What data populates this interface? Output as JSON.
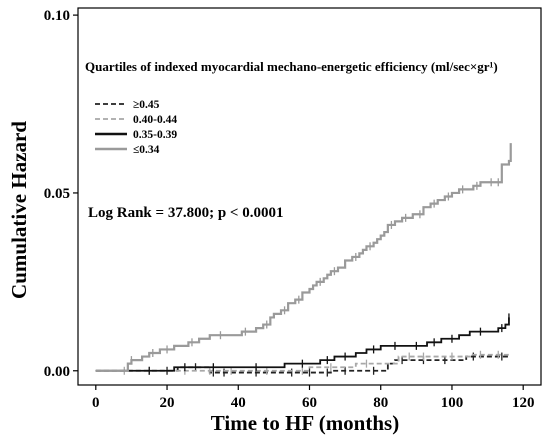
{
  "chart_data": {
    "type": "line",
    "title": "Quartiles of indexed myocardial mechano-energetic efficiency (ml/sec×gr¹)",
    "xlabel": "Time to HF (months)",
    "ylabel": "Cumulative Hazard",
    "xlim": [
      -5,
      125
    ],
    "ylim": [
      -0.004,
      0.102
    ],
    "x_ticks": [
      0,
      20,
      40,
      60,
      80,
      100,
      120
    ],
    "x_tick_labels": [
      "0",
      "20",
      "40",
      "60",
      "80",
      "100",
      "120"
    ],
    "y_ticks": [
      0.0,
      0.05,
      0.1
    ],
    "y_tick_labels": [
      "0.00",
      "0.05",
      "0.10"
    ],
    "annotation": "Log Rank = 37.800; p < 0.0001",
    "legend_position": "top-left",
    "step_plot": true,
    "series": [
      {
        "name": "≥0.45",
        "color": "#222222",
        "dash": "dashed",
        "points": [
          [
            0,
            0
          ],
          [
            22,
            0.0
          ],
          [
            23,
            0.001
          ],
          [
            30,
            0.001
          ],
          [
            32,
            -0.0005
          ],
          [
            50,
            -0.0005
          ],
          [
            58,
            -0.0005
          ],
          [
            62,
            -0.0005
          ],
          [
            64,
            -0.0005
          ],
          [
            66,
            0.0
          ],
          [
            72,
            0.0
          ],
          [
            82,
            0.002
          ],
          [
            84,
            0.003
          ],
          [
            95,
            0.003
          ],
          [
            100,
            0.003
          ],
          [
            104,
            0.004
          ],
          [
            110,
            0.004
          ],
          [
            116,
            0.004
          ]
        ],
        "censor_x": [
          20,
          28,
          33,
          36,
          45,
          55,
          60,
          65,
          70,
          78,
          86,
          92,
          98,
          106,
          114
        ]
      },
      {
        "name": "0.40-0.44",
        "color": "#a8a8a8",
        "dash": "dashed",
        "points": [
          [
            0,
            0
          ],
          [
            20,
            0.0
          ],
          [
            21,
            0.0
          ],
          [
            30,
            0.0
          ],
          [
            40,
            0.0
          ],
          [
            44,
            0.0
          ],
          [
            55,
            0.0
          ],
          [
            60,
            0.001
          ],
          [
            70,
            0.001
          ],
          [
            73,
            0.002
          ],
          [
            80,
            0.002
          ],
          [
            85,
            0.004
          ],
          [
            95,
            0.004
          ],
          [
            105,
            0.0045
          ],
          [
            112,
            0.0045
          ],
          [
            116,
            0.0045
          ]
        ],
        "censor_x": [
          8,
          15,
          25,
          32,
          38,
          48,
          58,
          66,
          76,
          88,
          92,
          100,
          108,
          113
        ]
      },
      {
        "name": "0.35-0.39",
        "color": "#111111",
        "dash": "solid",
        "points": [
          [
            0,
            0
          ],
          [
            10,
            0.0
          ],
          [
            21,
            0.0
          ],
          [
            22,
            0.001
          ],
          [
            40,
            0.001
          ],
          [
            52,
            0.001
          ],
          [
            53,
            0.002
          ],
          [
            62,
            0.002
          ],
          [
            63,
            0.003
          ],
          [
            66,
            0.003
          ],
          [
            67,
            0.004
          ],
          [
            72,
            0.004
          ],
          [
            73,
            0.005
          ],
          [
            75,
            0.005
          ],
          [
            76,
            0.006
          ],
          [
            79,
            0.006
          ],
          [
            80,
            0.007
          ],
          [
            88,
            0.007
          ],
          [
            92,
            0.007
          ],
          [
            93,
            0.008
          ],
          [
            96,
            0.008
          ],
          [
            97,
            0.009
          ],
          [
            101,
            0.009
          ],
          [
            102,
            0.01
          ],
          [
            104,
            0.01
          ],
          [
            105,
            0.011
          ],
          [
            112,
            0.011
          ],
          [
            113,
            0.012
          ],
          [
            115,
            0.013
          ],
          [
            116,
            0.015
          ]
        ],
        "censor_x": [
          15,
          25,
          33,
          45,
          58,
          65,
          70,
          78,
          84,
          90,
          95,
          100,
          108,
          114,
          116
        ]
      },
      {
        "name": "≤0.34",
        "color": "#9a9a9a",
        "dash": "solid",
        "points": [
          [
            0,
            0
          ],
          [
            8,
            0.0
          ],
          [
            9,
            0.002
          ],
          [
            10,
            0.003
          ],
          [
            12,
            0.003
          ],
          [
            13,
            0.004
          ],
          [
            14,
            0.004
          ],
          [
            15,
            0.005
          ],
          [
            17,
            0.005
          ],
          [
            18,
            0.006
          ],
          [
            21,
            0.006
          ],
          [
            22,
            0.007
          ],
          [
            25,
            0.007
          ],
          [
            26,
            0.008
          ],
          [
            28,
            0.008
          ],
          [
            29,
            0.009
          ],
          [
            31,
            0.009
          ],
          [
            32,
            0.01
          ],
          [
            40,
            0.01
          ],
          [
            41,
            0.011
          ],
          [
            44,
            0.011
          ],
          [
            45,
            0.012
          ],
          [
            47,
            0.013
          ],
          [
            49,
            0.015
          ],
          [
            50,
            0.016
          ],
          [
            52,
            0.017
          ],
          [
            54,
            0.019
          ],
          [
            56,
            0.02
          ],
          [
            58,
            0.022
          ],
          [
            60,
            0.023
          ],
          [
            61,
            0.024
          ],
          [
            62,
            0.025
          ],
          [
            64,
            0.026
          ],
          [
            65,
            0.027
          ],
          [
            66,
            0.028
          ],
          [
            68,
            0.029
          ],
          [
            70,
            0.031
          ],
          [
            72,
            0.032
          ],
          [
            74,
            0.033
          ],
          [
            75,
            0.034
          ],
          [
            76,
            0.035
          ],
          [
            78,
            0.036
          ],
          [
            79,
            0.037
          ],
          [
            80,
            0.038
          ],
          [
            81,
            0.039
          ],
          [
            82,
            0.041
          ],
          [
            84,
            0.042
          ],
          [
            86,
            0.043
          ],
          [
            88,
            0.043
          ],
          [
            89,
            0.044
          ],
          [
            92,
            0.046
          ],
          [
            94,
            0.047
          ],
          [
            96,
            0.048
          ],
          [
            98,
            0.049
          ],
          [
            100,
            0.05
          ],
          [
            102,
            0.051
          ],
          [
            106,
            0.052
          ],
          [
            108,
            0.053
          ],
          [
            110,
            0.053
          ],
          [
            113,
            0.053
          ],
          [
            114,
            0.058
          ],
          [
            116,
            0.059
          ],
          [
            116.5,
            0.064
          ]
        ],
        "censor_x": [
          10,
          16,
          20,
          27,
          35,
          42,
          48,
          53,
          57,
          63,
          67,
          73,
          77,
          83,
          87,
          91,
          95,
          99,
          103,
          107,
          111,
          113
        ]
      }
    ]
  }
}
